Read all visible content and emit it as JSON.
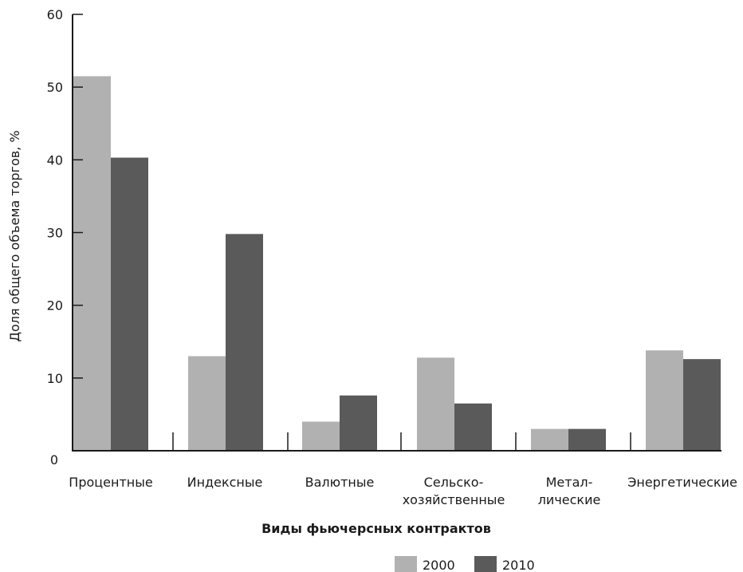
{
  "chart_data": {
    "type": "bar",
    "categories": [
      [
        "Процентные"
      ],
      [
        "Индексные"
      ],
      [
        "Валютные"
      ],
      [
        "Сельско-",
        "хозяйственные"
      ],
      [
        "Метал-",
        "лические"
      ],
      [
        "Энергетические"
      ]
    ],
    "series": [
      {
        "name": "2000",
        "color": "#b1b1b1",
        "values": [
          51.5,
          13,
          4,
          12.8,
          3,
          13.8
        ]
      },
      {
        "name": "2010",
        "color": "#5a5a5a",
        "values": [
          40.3,
          29.8,
          7.6,
          6.5,
          3,
          12.6
        ]
      }
    ],
    "xlabel": "Виды фьючерсных контрактов",
    "ylabel": "Доля общего объема торгов, %",
    "ylim": [
      0,
      60
    ],
    "yticks": [
      0,
      10,
      20,
      30,
      40,
      50,
      60
    ],
    "grid": false,
    "legend": "bottom-right"
  }
}
